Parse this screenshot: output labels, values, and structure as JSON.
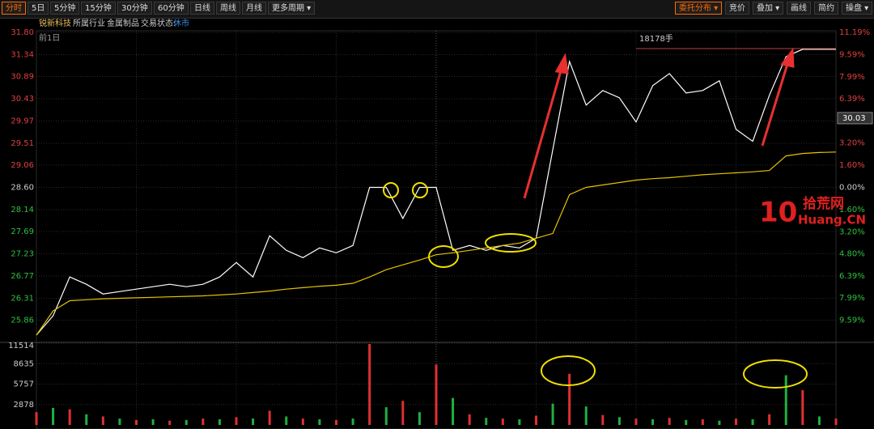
{
  "toolbar": {
    "left": [
      "分时",
      "5日",
      "5分钟",
      "15分钟",
      "30分钟",
      "60分钟",
      "日线",
      "周线",
      "月线",
      "更多周期 ▾"
    ],
    "right": [
      "委托分布 ▾",
      "竞价",
      "叠加 ▾",
      "画线",
      "简约",
      "操盘 ▾"
    ]
  },
  "info": {
    "name": "锐新科技",
    "industry_label": "所属行业",
    "industry": "金属制品",
    "status_label": "交易状态:",
    "status": "休市"
  },
  "chart_data": {
    "type": "line",
    "subtitle": "前1日",
    "annotation": "18178手",
    "x": [
      0,
      10,
      20,
      30,
      40,
      50,
      60,
      70,
      80,
      90,
      100,
      110,
      120,
      130,
      140,
      150,
      160,
      170,
      180,
      190,
      200,
      210,
      220,
      230,
      240,
      250,
      260,
      270,
      280,
      290,
      300,
      310,
      320,
      330,
      340,
      350,
      360,
      370,
      380,
      390,
      400,
      410,
      420,
      430,
      440,
      450,
      460,
      470,
      480
    ],
    "xlim": [
      0,
      480
    ],
    "xticks": [
      0,
      60,
      120,
      180,
      240,
      300,
      360,
      420,
      480
    ],
    "series": [
      {
        "color": "#ffffff",
        "values": [
          25.55,
          25.95,
          26.75,
          26.6,
          26.4,
          26.45,
          26.5,
          26.55,
          26.6,
          26.55,
          26.6,
          26.75,
          27.05,
          26.75,
          27.6,
          27.3,
          27.15,
          27.35,
          27.25,
          27.4,
          28.6,
          28.6,
          27.96,
          28.6,
          28.6,
          27.3,
          27.4,
          27.3,
          27.4,
          27.35,
          27.55,
          29.38,
          31.2,
          30.3,
          30.6,
          30.45,
          29.95,
          30.7,
          30.95,
          30.55,
          30.6,
          30.8,
          29.8,
          29.55,
          30.5,
          31.3,
          31.45,
          31.45,
          31.45
        ]
      },
      {
        "color": "#e6c200",
        "values": [
          25.55,
          26.05,
          26.26,
          26.28,
          26.3,
          26.31,
          26.32,
          26.33,
          26.34,
          26.35,
          26.36,
          26.38,
          26.4,
          26.43,
          26.46,
          26.5,
          26.53,
          26.56,
          26.58,
          26.62,
          26.75,
          26.9,
          27.0,
          27.1,
          27.21,
          27.25,
          27.3,
          27.35,
          27.4,
          27.45,
          27.55,
          27.65,
          28.45,
          28.6,
          28.65,
          28.7,
          28.75,
          28.78,
          28.8,
          28.83,
          28.86,
          28.88,
          28.9,
          28.92,
          28.95,
          29.25,
          29.3,
          29.32,
          29.33
        ]
      }
    ],
    "ylim": [
      25.4,
      31.8
    ],
    "yticks": [
      {
        "value": 31.8,
        "label": "31.80"
      },
      31.34,
      30.89,
      30.43,
      29.97,
      29.51,
      29.06,
      {
        "value": 28.6,
        "label": "28.60"
      },
      28.14,
      27.69,
      27.23,
      26.77,
      26.31,
      25.86
    ],
    "y2lim": [
      -11.19,
      11.19
    ],
    "y2ticks": [
      {
        "value": 11.19,
        "label": "11.19%"
      },
      {
        "value": 9.59,
        "label": "9.59%"
      },
      {
        "value": 7.99,
        "label": "7.99%"
      },
      {
        "value": 6.39,
        "label": "6.39%"
      },
      {
        "value": 4.8,
        "label": "4.80%"
      },
      {
        "value": 3.2,
        "label": "3.20%"
      },
      {
        "value": 1.6,
        "label": "1.60%"
      },
      {
        "value": 0,
        "label": "0.00%"
      },
      {
        "value": -1.6,
        "label": "1.60%"
      },
      {
        "value": -3.2,
        "label": "3.20%"
      },
      {
        "value": -4.8,
        "label": "4.80%"
      },
      {
        "value": -6.39,
        "label": "6.39%"
      },
      {
        "value": -7.99,
        "label": "7.99%"
      },
      {
        "value": -9.59,
        "label": "9.59%"
      }
    ],
    "price_tag": {
      "value": 30.03,
      "label": "30.03"
    },
    "grid": true,
    "volume": {
      "ylim": [
        0,
        11514
      ],
      "yticks": [
        11514,
        8635,
        5757,
        2878
      ],
      "values": [
        1800,
        2400,
        2200,
        1500,
        1200,
        900,
        700,
        800,
        600,
        700,
        900,
        800,
        1100,
        900,
        2000,
        1200,
        900,
        800,
        700,
        900,
        11400,
        2500,
        3400,
        1800,
        8500,
        3800,
        1500,
        1000,
        900,
        800,
        1300,
        3000,
        7200,
        2600,
        1400,
        1100,
        900,
        800,
        1000,
        700,
        800,
        600,
        900,
        800,
        1500,
        7000,
        4900,
        1200,
        900
      ],
      "colors": [
        "#e03030",
        "#20b040",
        "#e03030",
        "#20b040",
        "#e03030",
        "#20b040",
        "#e03030",
        "#20b040",
        "#e03030",
        "#20b040",
        "#e03030",
        "#20b040",
        "#e03030",
        "#20b040",
        "#e03030",
        "#20b040",
        "#e03030",
        "#20b040",
        "#e03030",
        "#20b040",
        "#e03030",
        "#20b040",
        "#e03030",
        "#20b040",
        "#e03030",
        "#20b040",
        "#e03030",
        "#20b040",
        "#e03030",
        "#20b040",
        "#e03030",
        "#20b040",
        "#e03030",
        "#20b040",
        "#e03030",
        "#20b040",
        "#e03030",
        "#20b040",
        "#e03030",
        "#20b040",
        "#e03030",
        "#20b040",
        "#e03030",
        "#20b040",
        "#e03030",
        "#20b040",
        "#e03030",
        "#20b040",
        "#e03030"
      ]
    }
  },
  "watermark": {
    "logo": "10",
    "text1": "拾荒网",
    "text2": "Huang.CN"
  }
}
